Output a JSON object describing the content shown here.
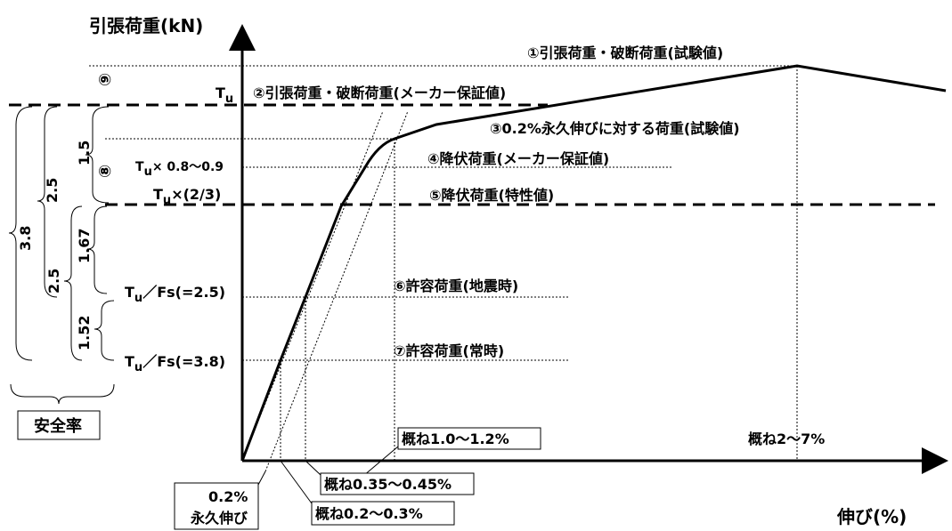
{
  "axes": {
    "y_label": "引張荷重(kN)",
    "x_label": "伸び(%)"
  },
  "annotations": {
    "a1": "①引張荷重・破断荷重(試験値)",
    "a2": "②引張荷重・破断荷重(メーカー保証値)",
    "a3": "③0.2%永久伸びに対する荷重(試験値)",
    "a4": "④降伏荷重(メーカー保証値)",
    "a5": "⑤降伏荷重(特性値)",
    "a6": "⑥許容荷重(地震時)",
    "a7": "⑦許容荷重(常時)"
  },
  "y_labels": {
    "tu": "T",
    "tu_sub": "u",
    "yield_range_pre": "T",
    "yield_range_sub": "u",
    "yield_range_post": "× 0.8〜0.9",
    "two_thirds_pre": "T",
    "two_thirds_sub": "u",
    "two_thirds_post": "×(2/3)",
    "fs25_pre": "T",
    "fs25_sub": "u",
    "fs25_post": "／Fs(=2.5)",
    "fs38_pre": "T",
    "fs38_sub": "u",
    "fs38_post": "／Fs(=3.8)"
  },
  "markers": {
    "m8": "⑧",
    "m9": "⑨"
  },
  "safety_factors": {
    "v1_5": "1.5",
    "v2_5_upper": "2.5",
    "v3_8": "3.8",
    "v1_67": "1.67",
    "v2_5_lower": "2.5",
    "v1_52": "1.52",
    "caption": "安全率"
  },
  "x_callouts": {
    "c1": "概ね1.0〜1.2%",
    "c2": "概ね2〜7%",
    "c3": "概ね0.35〜0.45%",
    "c4": "概ね0.2〜0.3%",
    "c5_line1": "0.2%",
    "c5_line2": "永久伸び"
  }
}
